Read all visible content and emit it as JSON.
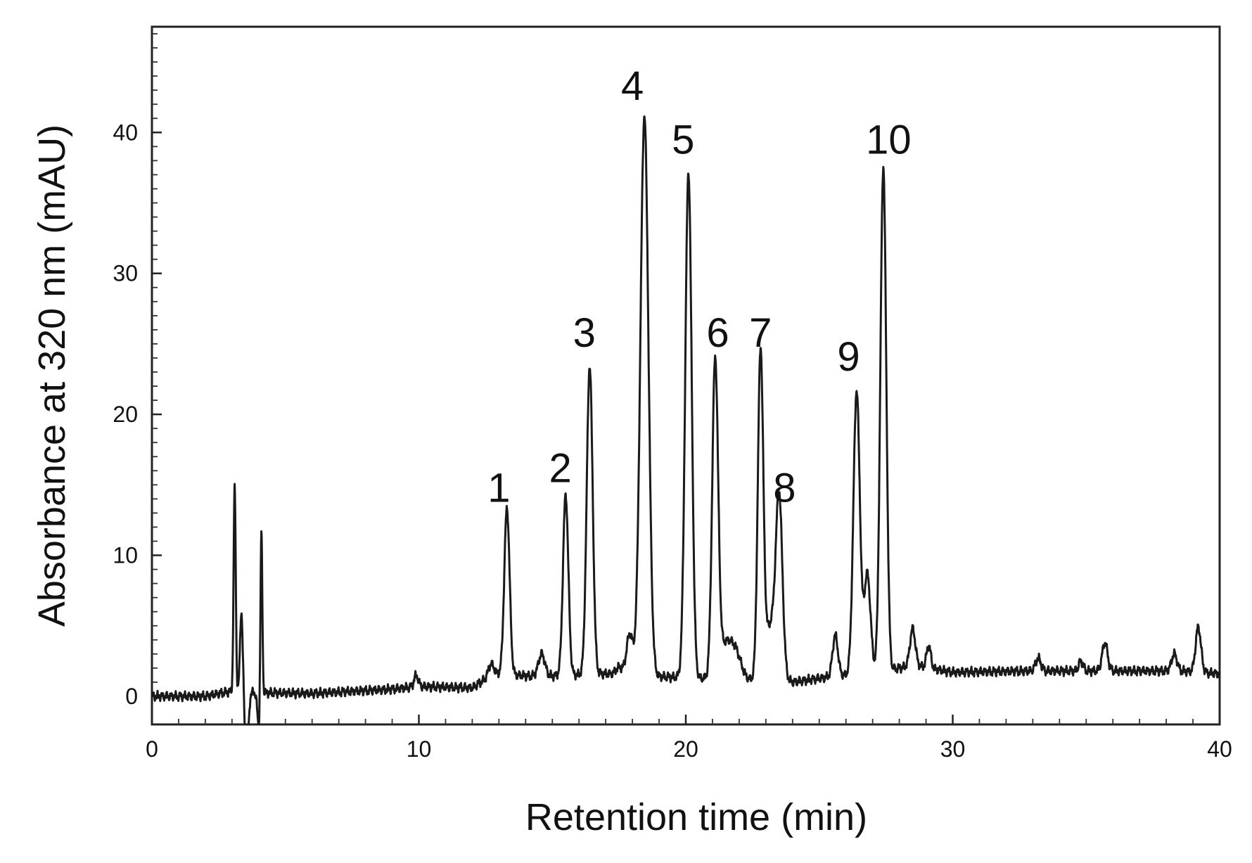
{
  "chart_data": {
    "type": "line",
    "title": "",
    "xlabel": "Retention time (min)",
    "ylabel": "Absorbance at 320 nm (mAU)",
    "xlim": [
      0,
      40
    ],
    "ylim": [
      -2,
      47.5
    ],
    "x_ticks": [
      0,
      10,
      20,
      30,
      40
    ],
    "x_tick_labels": [
      "0",
      "10",
      "20",
      "30",
      "40"
    ],
    "y_ticks": [
      0,
      10,
      20,
      30,
      40
    ],
    "y_tick_labels": [
      "0",
      "10",
      "20",
      "30",
      "40"
    ],
    "grid": false,
    "legend": "none",
    "line_color": "#1a1a1a",
    "baseline": [
      [
        0,
        0
      ],
      [
        2,
        0
      ],
      [
        2.8,
        0.3
      ],
      [
        6,
        0.2
      ],
      [
        9,
        0.5
      ],
      [
        10,
        0.7
      ],
      [
        12,
        0.6
      ],
      [
        12.8,
        1.6
      ],
      [
        14.5,
        1.4
      ],
      [
        17,
        1.6
      ],
      [
        19,
        1.4
      ],
      [
        24,
        1.0
      ],
      [
        25.5,
        1.4
      ],
      [
        27.5,
        1.8
      ],
      [
        28.5,
        2.2
      ],
      [
        30,
        1.7
      ],
      [
        33,
        1.8
      ],
      [
        36,
        1.8
      ],
      [
        38.5,
        1.8
      ],
      [
        40,
        1.6
      ]
    ],
    "peaks": [
      {
        "t": 3.1,
        "height": 14.5,
        "width": 0.04
      },
      {
        "t": 3.35,
        "height": 5.7,
        "width": 0.05
      },
      {
        "t": 3.55,
        "height": -5.5,
        "width": 0.06
      },
      {
        "t": 4.1,
        "height": 11.5,
        "width": 0.035
      },
      {
        "t": 4.0,
        "height": -2.5,
        "width": 0.05
      },
      {
        "t": 9.9,
        "height": 0.8,
        "width": 0.08
      },
      {
        "t": 12.7,
        "height": 0.8,
        "width": 0.1
      },
      {
        "t": 13.3,
        "height": 11.8,
        "width": 0.1
      },
      {
        "t": 14.6,
        "height": 1.6,
        "width": 0.12
      },
      {
        "t": 15.5,
        "height": 12.8,
        "width": 0.1
      },
      {
        "t": 16.4,
        "height": 21.9,
        "width": 0.11
      },
      {
        "t": 17.5,
        "height": 0.5,
        "width": 0.12
      },
      {
        "t": 17.9,
        "height": 2.9,
        "width": 0.12
      },
      {
        "t": 18.45,
        "height": 39.7,
        "width": 0.15
      },
      {
        "t": 20.1,
        "height": 35.9,
        "width": 0.12
      },
      {
        "t": 21.1,
        "height": 22.2,
        "width": 0.11
      },
      {
        "t": 21.5,
        "height": 2.5,
        "width": 0.25
      },
      {
        "t": 21.9,
        "height": 1.5,
        "width": 0.2
      },
      {
        "t": 22.8,
        "height": 22.6,
        "width": 0.1
      },
      {
        "t": 23.2,
        "height": 4.0,
        "width": 0.25
      },
      {
        "t": 23.5,
        "height": 11.6,
        "width": 0.12
      },
      {
        "t": 25.6,
        "height": 2.9,
        "width": 0.1
      },
      {
        "t": 26.4,
        "height": 20.1,
        "width": 0.12
      },
      {
        "t": 26.8,
        "height": 7.0,
        "width": 0.12
      },
      {
        "t": 27.4,
        "height": 35.8,
        "width": 0.11
      },
      {
        "t": 28.5,
        "height": 2.6,
        "width": 0.1
      },
      {
        "t": 29.1,
        "height": 1.6,
        "width": 0.08
      },
      {
        "t": 33.2,
        "height": 0.9,
        "width": 0.1
      },
      {
        "t": 34.8,
        "height": 0.7,
        "width": 0.08
      },
      {
        "t": 35.7,
        "height": 2.0,
        "width": 0.1
      },
      {
        "t": 38.3,
        "height": 1.2,
        "width": 0.1
      },
      {
        "t": 39.2,
        "height": 3.2,
        "width": 0.1
      }
    ],
    "peak_labels": [
      {
        "text": "1",
        "x": 13.0,
        "y": 13.8
      },
      {
        "text": "2",
        "x": 15.3,
        "y": 15.2
      },
      {
        "text": "3",
        "x": 16.2,
        "y": 24.8
      },
      {
        "text": "4",
        "x": 18.0,
        "y": 42.3
      },
      {
        "text": "5",
        "x": 19.9,
        "y": 38.5
      },
      {
        "text": "6",
        "x": 21.2,
        "y": 24.8
      },
      {
        "text": "7",
        "x": 22.8,
        "y": 24.8
      },
      {
        "text": "8",
        "x": 23.7,
        "y": 13.8
      },
      {
        "text": "9",
        "x": 26.1,
        "y": 23.1
      },
      {
        "text": "10",
        "x": 27.6,
        "y": 38.5
      }
    ]
  }
}
